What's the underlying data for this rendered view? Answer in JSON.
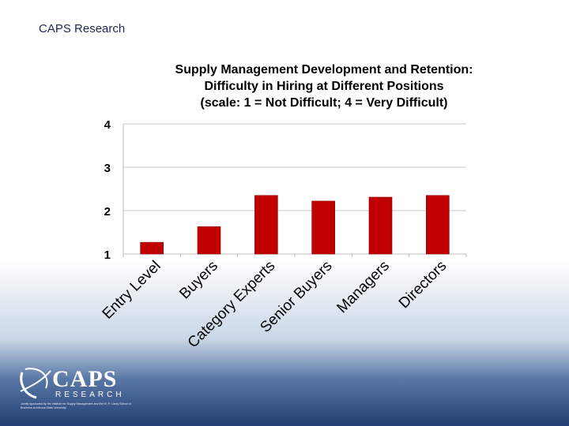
{
  "header": {
    "label": "CAPS Research"
  },
  "chart_data": {
    "type": "bar",
    "title_lines": [
      "Supply Management Development and Retention:",
      "Difficulty in Hiring at Different Positions",
      "(scale: 1 = Not Difficult; 4 = Very Difficult)"
    ],
    "xlabel": "",
    "ylabel": "",
    "categories": [
      "Entry Level",
      "Buyers",
      "Category Experts",
      "Senior Buyers",
      "Managers",
      "Directors"
    ],
    "values": [
      1.27,
      1.63,
      2.35,
      2.22,
      2.31,
      2.35
    ],
    "ylim": [
      1,
      4
    ],
    "yticks": [
      1,
      2,
      3,
      4
    ],
    "grid": true,
    "bar_color": "#c00000"
  },
  "logo": {
    "name": "CAPS",
    "sub": "RESEARCH",
    "note": "Jointly sponsored by the Institute for Supply Management and the W. P. Carey School of Business at Arizona State University"
  }
}
